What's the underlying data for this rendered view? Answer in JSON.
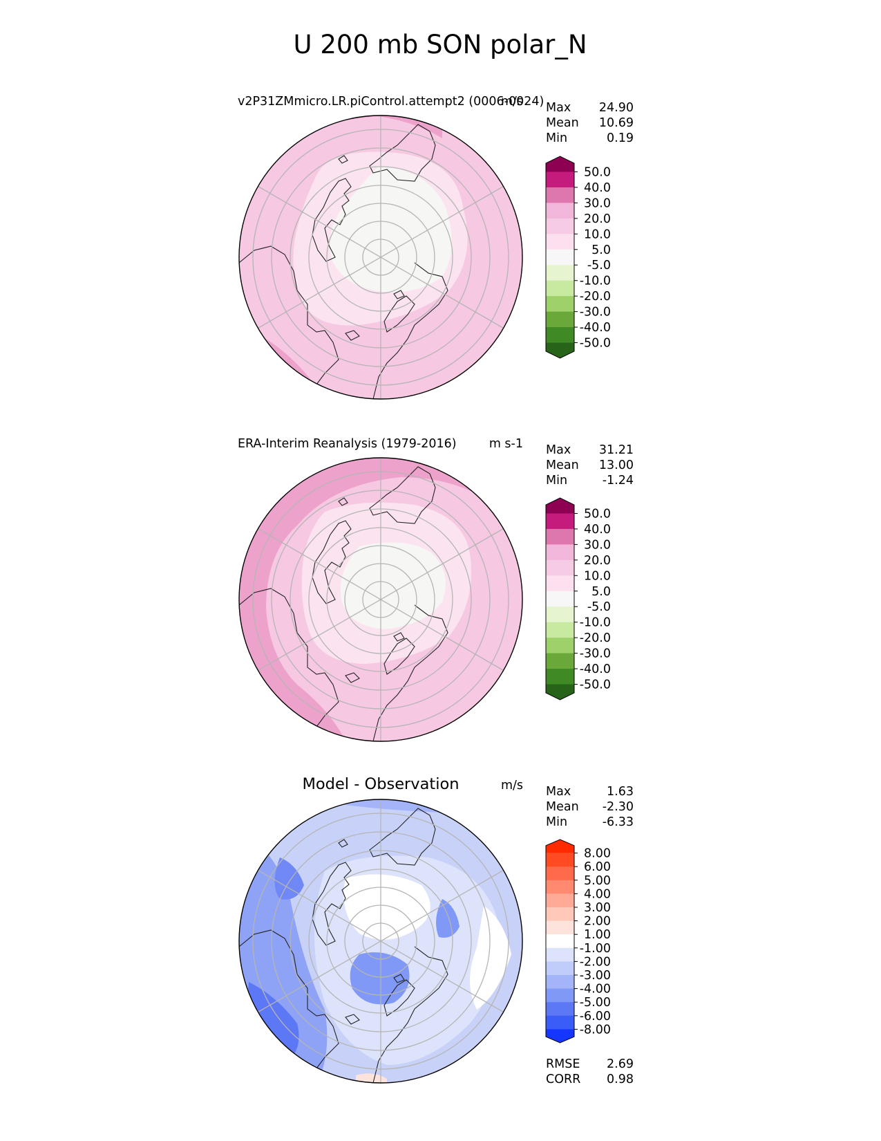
{
  "title": "U 200 mb SON polar_N",
  "colors": {
    "grid": "#b5b5b5",
    "coast": "#222222",
    "panel_border": "#000000"
  },
  "chart_data": [
    {
      "type": "heatmap",
      "projection": "north-polar-stereographic",
      "title_left": "v2P31ZMmicro.LR.piControl.attempt2 (0006-0024)",
      "title_right": "m/s",
      "stats": [
        {
          "label": "Max",
          "value": "24.90"
        },
        {
          "label": "Mean",
          "value": "10.69"
        },
        {
          "label": "Min",
          "value": "0.19"
        }
      ],
      "colorbar": {
        "levels": [
          "50.0",
          "40.0",
          "30.0",
          "20.0",
          "10.0",
          "5.0",
          "-5.0",
          "-10.0",
          "-20.0",
          "-30.0",
          "-40.0",
          "-50.0"
        ],
        "colors": [
          "#8e0152",
          "#c51b7d",
          "#de77ae",
          "#f1b6da",
          "#f6cbe5",
          "#fde0ef",
          "#f7f7f7",
          "#e6f5d0",
          "#c7e9a0",
          "#9fd16a",
          "#6aa83a",
          "#3f8a25",
          "#276419"
        ],
        "extend": "both"
      },
      "field": {
        "edge_value": 19,
        "pole_value": 2,
        "background_color": "#f6c8e2",
        "mid_color": "#fbe3f0",
        "pole_color": "#f6f6f4"
      }
    },
    {
      "type": "heatmap",
      "projection": "north-polar-stereographic",
      "title_left": "ERA-Interim Reanalysis (1979-2016)",
      "title_right": "m s-1",
      "stats": [
        {
          "label": "Max",
          "value": "31.21"
        },
        {
          "label": "Mean",
          "value": "13.00"
        },
        {
          "label": "Min",
          "value": "-1.24"
        }
      ],
      "colorbar": {
        "levels": [
          "50.0",
          "40.0",
          "30.0",
          "20.0",
          "10.0",
          "5.0",
          "-5.0",
          "-10.0",
          "-20.0",
          "-30.0",
          "-40.0",
          "-50.0"
        ],
        "colors": [
          "#8e0152",
          "#c51b7d",
          "#de77ae",
          "#f1b6da",
          "#f6cbe5",
          "#fde0ef",
          "#f7f7f7",
          "#e6f5d0",
          "#c7e9a0",
          "#9fd16a",
          "#6aa83a",
          "#3f8a25",
          "#276419"
        ],
        "extend": "both"
      },
      "field": {
        "edge_value": 22,
        "pole_value": 1,
        "background_color": "#f6c8e2",
        "mid_color": "#fbe3f0",
        "pole_color": "#f6f6f4"
      }
    },
    {
      "type": "heatmap",
      "projection": "north-polar-stereographic",
      "title_center": "Model - Observation",
      "title_right": "m/s",
      "stats": [
        {
          "label": "Max",
          "value": "1.63"
        },
        {
          "label": "Mean",
          "value": "-2.30"
        },
        {
          "label": "Min",
          "value": "-6.33"
        }
      ],
      "colorbar": {
        "levels": [
          "8.00",
          "6.00",
          "5.00",
          "4.00",
          "3.00",
          "2.00",
          "1.00",
          "-1.00",
          "-2.00",
          "-3.00",
          "-4.00",
          "-5.00",
          "-6.00",
          "-8.00"
        ],
        "colors": [
          "#ff2a00",
          "#ff4a22",
          "#ff6a4a",
          "#ff8a70",
          "#ffaa96",
          "#ffc8b8",
          "#fde3dc",
          "#ffffff",
          "#dde3fb",
          "#c0ccfa",
          "#a3b4f8",
          "#8098f6",
          "#5c78f5",
          "#3a5cf7",
          "#1436fe"
        ],
        "extend": "both"
      },
      "footer_stats": [
        {
          "label": "RMSE",
          "value": "2.69"
        },
        {
          "label": "CORR",
          "value": "0.98"
        }
      ],
      "field": {
        "edge_value": -3,
        "pole_value": 0,
        "background_color": "#c8d2f8",
        "mid_color": "#dbe1fa",
        "pole_color": "#ffffff"
      }
    }
  ]
}
